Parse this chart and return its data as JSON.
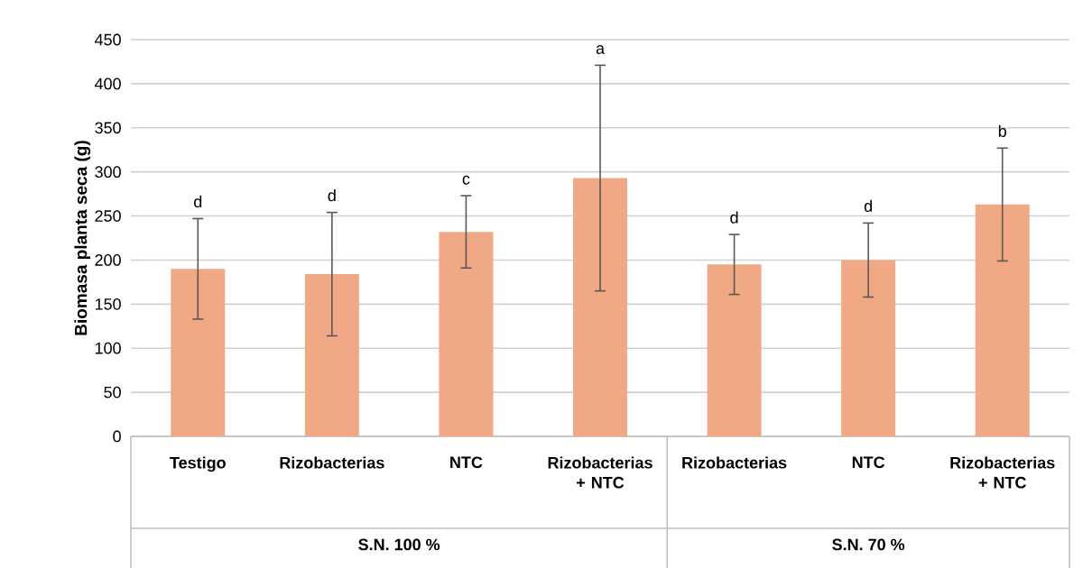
{
  "chart_data": {
    "type": "bar",
    "ylabel": "Biomasa planta seca (g)",
    "categories": [
      "Testigo",
      "Rizobacterias",
      "NTC",
      "Rizobacterias + NTC",
      "Rizobacterias",
      "NTC",
      "Rizobacterias + NTC"
    ],
    "values": [
      190,
      184,
      232,
      293,
      195,
      200,
      263
    ],
    "errors": [
      57,
      70,
      41,
      128,
      34,
      42,
      64
    ],
    "color": "#f0a984",
    "ylim": [
      0,
      450
    ],
    "yticks": [
      0,
      50,
      100,
      150,
      200,
      250,
      300,
      350,
      400,
      450
    ],
    "grid": "y",
    "annotations": [
      "d",
      "d",
      "c",
      "a",
      "d",
      "d",
      "b",
      "S.N. 100 %",
      "S.N. 70 %"
    ]
  }
}
